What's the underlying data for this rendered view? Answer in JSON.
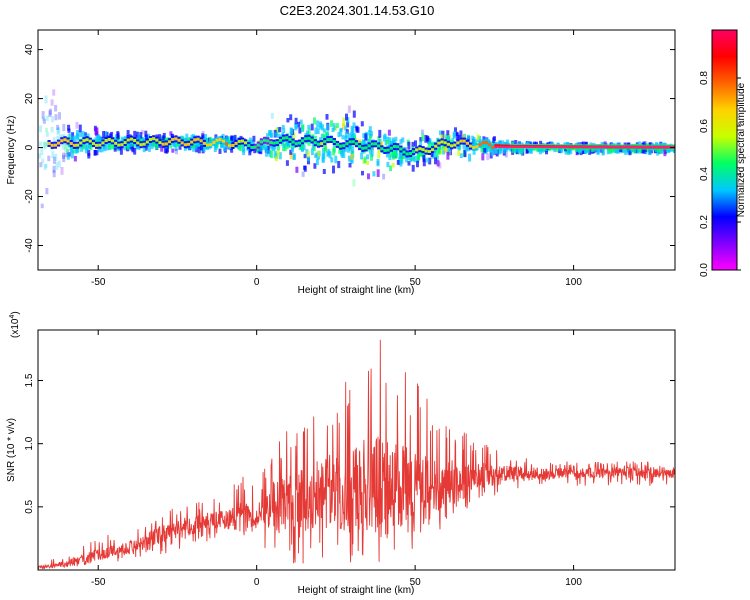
{
  "title": "C2E3.2024.301.14.53.G10",
  "colors": {
    "snr_line": "#e53935",
    "ridge": "#ff1f6a",
    "noise_dark": "#3a10c8",
    "noise_mid": "#7a2cf0",
    "axis": "#000000"
  },
  "chart_data": [
    {
      "type": "heatmap",
      "xlabel": "Height of straight line (km)",
      "ylabel": "Frequency (Hz)",
      "xlim": [
        -69,
        132
      ],
      "ylim": [
        -50,
        48
      ],
      "xticks": [
        -50,
        0,
        50,
        100
      ],
      "yticks": [
        -40,
        -20,
        0,
        20,
        40
      ],
      "colorbar": {
        "label": "Normalized spectral amplitude",
        "range": [
          0,
          1
        ],
        "ticks": [
          "0.0",
          "0.2",
          "0.4",
          "0.6",
          "0.8"
        ],
        "colormap": [
          "#ff00ff",
          "#8000ff",
          "#0000ff",
          "#00c8ff",
          "#00ff64",
          "#c8ff00",
          "#ffd200",
          "#ff6400",
          "#ff0000",
          "#ff0064"
        ]
      },
      "ridge": {
        "description": "dominant frequency near 0-3 Hz",
        "x": [
          -66,
          -50,
          -30,
          -10,
          0,
          5,
          20,
          40,
          50,
          60,
          70,
          80,
          100,
          120,
          132
        ],
        "y": [
          2,
          2,
          2.5,
          2,
          1,
          3,
          2.5,
          0,
          -2,
          2,
          1,
          0.5,
          0.3,
          0.2,
          0.2
        ],
        "amplitude": [
          0.65,
          0.55,
          0.6,
          0.7,
          0.4,
          0.45,
          0.5,
          0.45,
          0.5,
          0.55,
          0.7,
          0.9,
          0.95,
          0.95,
          0.95
        ]
      },
      "broadband_spread": {
        "x": [
          -69,
          -60,
          -40,
          0,
          5,
          15,
          25,
          35,
          45,
          55,
          65,
          75,
          90,
          132
        ],
        "halfwidth_hz": [
          35,
          10,
          5,
          4,
          12,
          16,
          18,
          16,
          9,
          9,
          7,
          4,
          2,
          2
        ]
      }
    },
    {
      "type": "line",
      "xlabel": "Height of straight line (km)",
      "ylabel": "SNR (10 * v/v)",
      "yscale_label": "(x10",
      "yscale_exp": "4",
      "xlim": [
        -69,
        132
      ],
      "ylim": [
        0,
        1.9
      ],
      "xticks": [
        -50,
        0,
        50,
        100
      ],
      "yticks": [
        0.5,
        1.0,
        1.5
      ],
      "ytick_labels": [
        "0.5",
        "1.0",
        "1.5"
      ],
      "envelope": {
        "x": [
          -69,
          -60,
          -55,
          -50,
          -40,
          -30,
          -20,
          -10,
          -5,
          0,
          5,
          10,
          15,
          20,
          25,
          30,
          35,
          40,
          45,
          50,
          55,
          60,
          65,
          70,
          80,
          90,
          100,
          110,
          120,
          132
        ],
        "mean": [
          0.02,
          0.05,
          0.08,
          0.12,
          0.18,
          0.28,
          0.36,
          0.4,
          0.42,
          0.43,
          0.5,
          0.52,
          0.56,
          0.6,
          0.62,
          0.65,
          0.66,
          0.66,
          0.64,
          0.62,
          0.66,
          0.68,
          0.7,
          0.74,
          0.76,
          0.76,
          0.77,
          0.77,
          0.77,
          0.77
        ],
        "max": [
          0.05,
          0.12,
          0.22,
          0.26,
          0.32,
          0.45,
          0.55,
          0.58,
          0.78,
          0.65,
          0.98,
          1.12,
          1.18,
          1.3,
          1.45,
          1.6,
          1.75,
          1.95,
          1.7,
          1.55,
          1.3,
          1.25,
          1.1,
          1.05,
          0.9,
          0.87,
          0.86,
          0.86,
          0.86,
          0.86
        ],
        "min": [
          0.0,
          0.02,
          0.02,
          0.05,
          0.08,
          0.12,
          0.2,
          0.25,
          0.25,
          0.3,
          0.05,
          0.05,
          0.05,
          0.05,
          0.05,
          0.05,
          0.05,
          0.05,
          0.05,
          0.1,
          0.25,
          0.35,
          0.45,
          0.55,
          0.62,
          0.65,
          0.66,
          0.66,
          0.66,
          0.66
        ]
      }
    }
  ]
}
